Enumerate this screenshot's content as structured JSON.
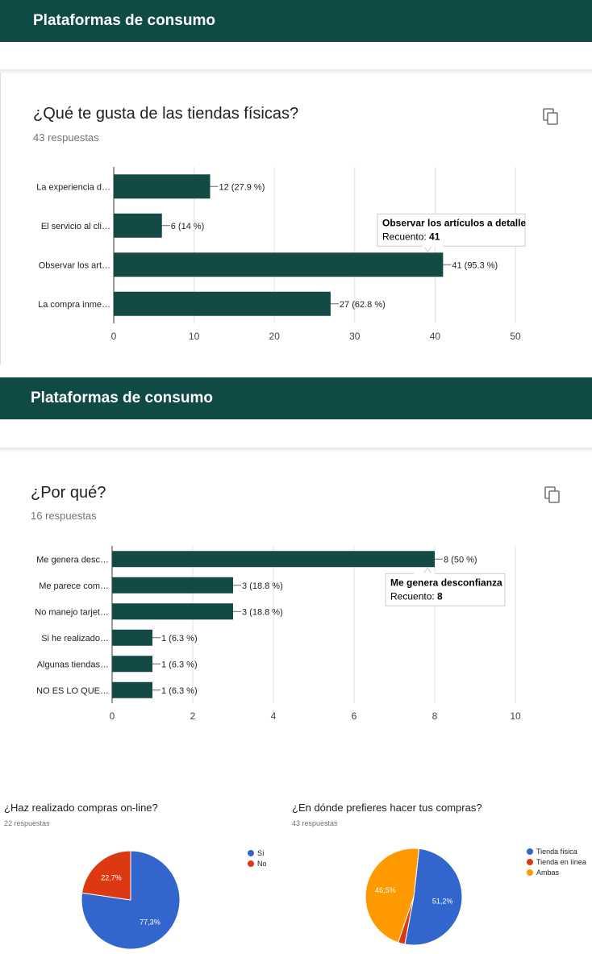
{
  "sections": [
    {
      "header": "Plataformas de consumo"
    },
    {
      "header": "Plataformas de consumo"
    }
  ],
  "chart_data": [
    {
      "type": "bar",
      "orientation": "horizontal",
      "title": "¿Qué te gusta de las tiendas físicas?",
      "subtitle": "43 respuestas",
      "categories": [
        "La experiencia d…",
        "El servicio al cli…",
        "Observar los art…",
        "La compra inme…"
      ],
      "values": [
        12,
        6,
        41,
        27
      ],
      "data_labels": [
        "12 (27.9 %)",
        "6 (14 %)",
        "41 (95.3 %)",
        "27 (62.8 %)"
      ],
      "xlim": [
        0,
        50
      ],
      "xticks": [
        0,
        10,
        20,
        30,
        40,
        50
      ],
      "grid": true,
      "color": "#134a45",
      "tooltip": {
        "title": "Observar los artículos a detalle",
        "label": "Recuento:",
        "value": "41",
        "index": 2
      }
    },
    {
      "type": "bar",
      "orientation": "horizontal",
      "title": "¿Por qué?",
      "subtitle": "16 respuestas",
      "categories": [
        "Me genera desc…",
        "Me parece com…",
        "No manejo tarjet…",
        "Si he realizado…",
        "Algunas tiendas…",
        "NO ES LO QUE…"
      ],
      "values": [
        8,
        3,
        3,
        1,
        1,
        1
      ],
      "data_labels": [
        "8 (50 %)",
        "3 (18.8 %)",
        "3 (18.8 %)",
        "1 (6.3 %)",
        "1 (6.3 %)",
        "1 (6.3 %)"
      ],
      "xlim": [
        0,
        10
      ],
      "xticks": [
        0,
        2,
        4,
        6,
        8,
        10
      ],
      "grid": true,
      "color": "#134a45",
      "tooltip": {
        "title": "Me genera desconfianza",
        "label": "Recuento:",
        "value": "8",
        "index": 0
      }
    },
    {
      "type": "pie",
      "title": "¿Haz realizado compras on-line?",
      "subtitle": "22 respuestas",
      "labels": [
        "Sí",
        "No"
      ],
      "values": [
        77.3,
        22.7
      ],
      "data_labels": [
        "77,3%",
        "22,7%"
      ],
      "colors": [
        "#3366cc",
        "#dc3912"
      ],
      "legend": "right"
    },
    {
      "type": "pie",
      "title": "¿En dónde prefieres hacer tus compras?",
      "subtitle": "43 respuestas",
      "labels": [
        "Tienda física",
        "Tienda en línea",
        "Ambas"
      ],
      "values": [
        51.2,
        2.3,
        46.5
      ],
      "data_labels": [
        "51,2%",
        "",
        "46,5%"
      ],
      "colors": [
        "#3366cc",
        "#dc3912",
        "#ff9900"
      ],
      "legend": "right"
    }
  ]
}
